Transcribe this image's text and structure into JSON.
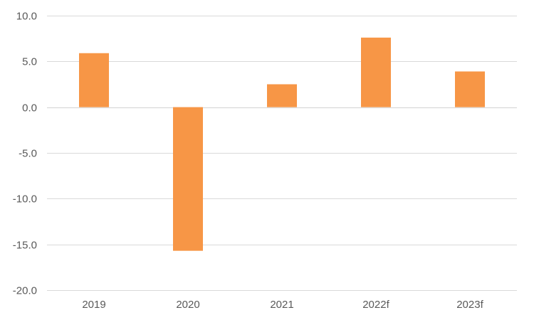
{
  "chart_data": {
    "type": "bar",
    "title": "",
    "xlabel": "",
    "ylabel": "",
    "categories": [
      "2019",
      "2020",
      "2021",
      "2022f",
      "2023f"
    ],
    "series": [
      {
        "values": [
          5.9,
          -15.7,
          2.5,
          7.6,
          3.9
        ]
      }
    ],
    "ylim": [
      -20.0,
      10.0
    ],
    "yticks": [
      10.0,
      5.0,
      0.0,
      -5.0,
      -10.0,
      -15.0,
      -20.0
    ],
    "ytick_labels": [
      "10.0",
      "5.0",
      "0.0",
      "-5.0",
      "-10.0",
      "-15.0",
      "-20.0"
    ],
    "grid": true,
    "legend": "none",
    "colors": {
      "bar": "#F79646",
      "grid": "#D9D9D9",
      "text": "#595959"
    }
  }
}
